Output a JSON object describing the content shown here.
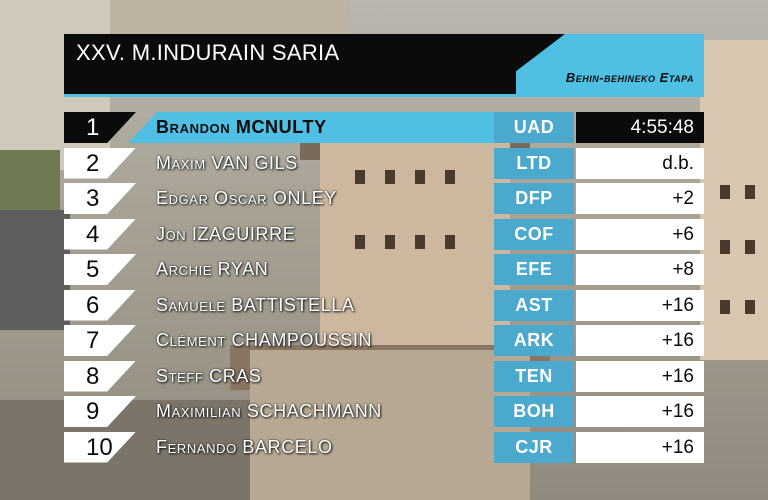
{
  "header": {
    "title": "XXV. M.INDURAIN SARIA",
    "stage": "Behin-behineko Etapa"
  },
  "colors": {
    "accent": "#4fbfe4",
    "team_box": "#4aa9cc",
    "dark": "#0b0b0b",
    "light": "#ffffff"
  },
  "standings": [
    {
      "pos": "1",
      "rider": "Brandon MCNULTY",
      "team": "UAD",
      "time": "4:55:48"
    },
    {
      "pos": "2",
      "rider": "Maxim VAN GILS",
      "team": "LTD",
      "time": "d.b."
    },
    {
      "pos": "3",
      "rider": "Edgar Oscar ONLEY",
      "team": "DFP",
      "time": "+2"
    },
    {
      "pos": "4",
      "rider": "Jon IZAGUIRRE",
      "team": "COF",
      "time": "+6"
    },
    {
      "pos": "5",
      "rider": "Archie RYAN",
      "team": "EFE",
      "time": "+8"
    },
    {
      "pos": "6",
      "rider": "Samuele BATTISTELLA",
      "team": "AST",
      "time": "+16"
    },
    {
      "pos": "7",
      "rider": "Clément CHAMPOUSSIN",
      "team": "ARK",
      "time": "+16"
    },
    {
      "pos": "8",
      "rider": "Steff CRAS",
      "team": "TEN",
      "time": "+16"
    },
    {
      "pos": "9",
      "rider": "Maximilian SCHACHMANN",
      "team": "BOH",
      "time": "+16"
    },
    {
      "pos": "10",
      "rider": "Fernando BARCELO",
      "team": "CJR",
      "time": "+16"
    }
  ]
}
